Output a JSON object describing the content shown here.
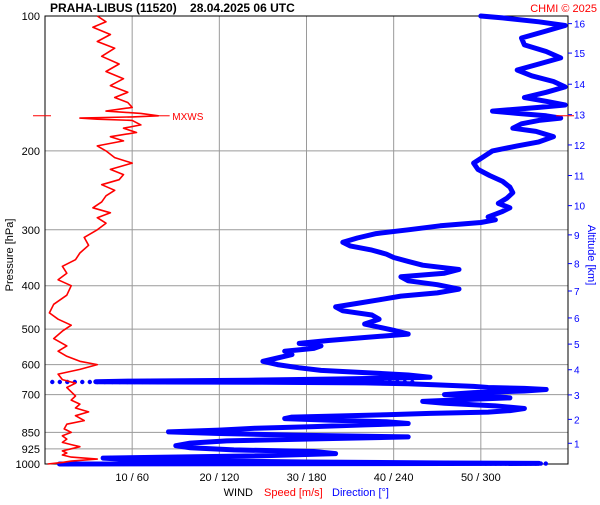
{
  "header": {
    "title": "PRAHA-LIBUS (11520)    28.04.2025 06 UTC",
    "credit": "CHMI © 2025"
  },
  "chart_data": {
    "type": "line",
    "left_axis": {
      "label": "Pressure [hPa]",
      "scale": "log",
      "range": [
        1000,
        100
      ],
      "ticks": [
        100,
        200,
        300,
        400,
        500,
        600,
        700,
        850,
        925,
        1000
      ],
      "tick_labels": [
        "100",
        "200",
        "300",
        "400",
        "500",
        "600",
        "700",
        "850",
        "925",
        "1000"
      ]
    },
    "right_axis": {
      "label": "Altitude [km]",
      "ticks": [
        1,
        2,
        3,
        4,
        5,
        6,
        7,
        8,
        9,
        10,
        11,
        12,
        13,
        14,
        15,
        16
      ],
      "tick_labels": [
        "1",
        "2",
        "3",
        "4",
        "5",
        "6",
        "7",
        "8",
        "9",
        "10",
        "11",
        "12",
        "13",
        "14",
        "15",
        "16"
      ]
    },
    "bottom_axis": {
      "label_wind": "WIND",
      "label_speed": "Speed [m/s]",
      "label_direction": "Direction [°]",
      "speed_range": [
        0,
        60
      ],
      "direction_range": [
        0,
        360
      ],
      "ticks": [
        "10 / 60",
        "20 / 120",
        "30 / 180",
        "40 / 240",
        "50 / 300"
      ]
    },
    "grid": true,
    "annotations": [
      {
        "text": "MXWS",
        "pressure": 167,
        "color": "#ff0000"
      }
    ],
    "series": [
      {
        "name": "Speed [m/s]",
        "color": "#ff0000",
        "x_unit": "m/s",
        "points": [
          [
            0.3,
            1000
          ],
          [
            2,
            992
          ],
          [
            3,
            985
          ],
          [
            6,
            975
          ],
          [
            3,
            965
          ],
          [
            2,
            955
          ],
          [
            2.5,
            945
          ],
          [
            2,
            935
          ],
          [
            3,
            925
          ],
          [
            4,
            915
          ],
          [
            3,
            905
          ],
          [
            2,
            895
          ],
          [
            2.5,
            880
          ],
          [
            2,
            865
          ],
          [
            3,
            850
          ],
          [
            2.2,
            835
          ],
          [
            2.5,
            815
          ],
          [
            4.5,
            800
          ],
          [
            3.5,
            780
          ],
          [
            5,
            765
          ],
          [
            3.5,
            750
          ],
          [
            4,
            735
          ],
          [
            3,
            720
          ],
          [
            3.5,
            705
          ],
          [
            3,
            690
          ],
          [
            2.5,
            675
          ],
          [
            3.5,
            660
          ],
          [
            2,
            648
          ],
          [
            1.5,
            630
          ],
          [
            4,
            615
          ],
          [
            6,
            600
          ],
          [
            4,
            590
          ],
          [
            2.5,
            575
          ],
          [
            1.5,
            560
          ],
          [
            2.5,
            545
          ],
          [
            1,
            525
          ],
          [
            2,
            505
          ],
          [
            3,
            490
          ],
          [
            1.5,
            475
          ],
          [
            0.5,
            460
          ],
          [
            1,
            440
          ],
          [
            2.5,
            420
          ],
          [
            3,
            400
          ],
          [
            1.5,
            388
          ],
          [
            2.5,
            375
          ],
          [
            2,
            362
          ],
          [
            3.5,
            350
          ],
          [
            4,
            338
          ],
          [
            5,
            325
          ],
          [
            4.5,
            312
          ],
          [
            6,
            300
          ],
          [
            7,
            290
          ],
          [
            6,
            282
          ],
          [
            7.5,
            275
          ],
          [
            5.5,
            268
          ],
          [
            6.5,
            260
          ],
          [
            7,
            252
          ],
          [
            8,
            245
          ],
          [
            6.5,
            238
          ],
          [
            8.5,
            232
          ],
          [
            9,
            226
          ],
          [
            7.5,
            220
          ],
          [
            10,
            213
          ],
          [
            8,
            207
          ],
          [
            7,
            200
          ],
          [
            6,
            195
          ],
          [
            9,
            190
          ],
          [
            7.5,
            186
          ],
          [
            10.5,
            182
          ],
          [
            9,
            178
          ],
          [
            11,
            175
          ],
          [
            10,
            171
          ],
          [
            6,
            170
          ],
          [
            4,
            169
          ],
          [
            10,
            168
          ],
          [
            13,
            167
          ],
          [
            11,
            165
          ],
          [
            7,
            163
          ],
          [
            10,
            160
          ],
          [
            9.5,
            156
          ],
          [
            8,
            152
          ],
          [
            9.5,
            148
          ],
          [
            7.5,
            143
          ],
          [
            9,
            138
          ],
          [
            7,
            133
          ],
          [
            8.5,
            128
          ],
          [
            6.5,
            123
          ],
          [
            8,
            118
          ],
          [
            6,
            114
          ],
          [
            7.5,
            110
          ],
          [
            5.5,
            106
          ],
          [
            7,
            103
          ],
          [
            6,
            100
          ]
        ]
      },
      {
        "name": "Direction [°]",
        "color": "#0000ff",
        "x_unit": "deg",
        "points": [
          [
            10,
            1000
          ],
          [
            340,
            997
          ],
          [
            275,
            995
          ],
          [
            180,
            990
          ],
          [
            130,
            985
          ],
          [
            60,
            978
          ],
          [
            40,
            970
          ],
          [
            150,
            958
          ],
          [
            200,
            948
          ],
          [
            185,
            938
          ],
          [
            130,
            930
          ],
          [
            100,
            920
          ],
          [
            90,
            910
          ],
          [
            100,
            898
          ],
          [
            125,
            888
          ],
          [
            190,
            878
          ],
          [
            250,
            870
          ],
          [
            170,
            862
          ],
          [
            120,
            855
          ],
          [
            85,
            848
          ],
          [
            120,
            840
          ],
          [
            145,
            832
          ],
          [
            185,
            825
          ],
          [
            220,
            818
          ],
          [
            250,
            812
          ],
          [
            235,
            805
          ],
          [
            195,
            798
          ],
          [
            165,
            792
          ],
          [
            170,
            786
          ],
          [
            205,
            781
          ],
          [
            235,
            776
          ],
          [
            265,
            771
          ],
          [
            305,
            766
          ],
          [
            320,
            760
          ],
          [
            330,
            752
          ],
          [
            310,
            742
          ],
          [
            275,
            732
          ],
          [
            260,
            725
          ],
          [
            290,
            718
          ],
          [
            320,
            712
          ],
          [
            305,
            705
          ],
          [
            275,
            700
          ],
          [
            295,
            693
          ],
          [
            330,
            687
          ],
          [
            345,
            682
          ],
          [
            330,
            678
          ],
          [
            305,
            675
          ],
          [
            295,
            671
          ],
          [
            270,
            666
          ],
          [
            250,
            662
          ],
          [
            220,
            659
          ],
          [
            150,
            657
          ],
          [
            80,
            656
          ],
          [
            35,
            655
          ],
          [
            60,
            653
          ],
          [
            140,
            650
          ],
          [
            200,
            646
          ],
          [
            240,
            643
          ],
          [
            265,
            640
          ],
          [
            250,
            633
          ],
          [
            220,
            625
          ],
          [
            190,
            618
          ],
          [
            175,
            610
          ],
          [
            160,
            600
          ],
          [
            150,
            590
          ],
          [
            160,
            580
          ],
          [
            170,
            570
          ],
          [
            165,
            560
          ],
          [
            185,
            552
          ],
          [
            190,
            545
          ],
          [
            175,
            538
          ],
          [
            195,
            530
          ],
          [
            220,
            522
          ],
          [
            250,
            513
          ],
          [
            240,
            503
          ],
          [
            230,
            495
          ],
          [
            220,
            487
          ],
          [
            230,
            475
          ],
          [
            225,
            465
          ],
          [
            205,
            455
          ],
          [
            200,
            446
          ],
          [
            215,
            438
          ],
          [
            230,
            430
          ],
          [
            245,
            422
          ],
          [
            270,
            415
          ],
          [
            285,
            407
          ],
          [
            270,
            398
          ],
          [
            250,
            390
          ],
          [
            245,
            382
          ],
          [
            275,
            375
          ],
          [
            285,
            368
          ],
          [
            260,
            360
          ],
          [
            250,
            353
          ],
          [
            240,
            346
          ],
          [
            235,
            340
          ],
          [
            225,
            333
          ],
          [
            210,
            326
          ],
          [
            205,
            320
          ],
          [
            215,
            313
          ],
          [
            228,
            306
          ],
          [
            250,
            300
          ],
          [
            272,
            294
          ],
          [
            300,
            289
          ],
          [
            310,
            285
          ],
          [
            305,
            281
          ],
          [
            310,
            277
          ],
          [
            315,
            273
          ],
          [
            320,
            268
          ],
          [
            312,
            262
          ],
          [
            318,
            255
          ],
          [
            322,
            248
          ],
          [
            320,
            241
          ],
          [
            315,
            234
          ],
          [
            306,
            227
          ],
          [
            298,
            220
          ],
          [
            295,
            213
          ],
          [
            302,
            206
          ],
          [
            308,
            200
          ],
          [
            325,
            195
          ],
          [
            340,
            191
          ],
          [
            350,
            186
          ],
          [
            338,
            181
          ],
          [
            322,
            178
          ],
          [
            328,
            174
          ],
          [
            340,
            171
          ],
          [
            355,
            169
          ],
          [
            345,
            167
          ],
          [
            325,
            165
          ],
          [
            308,
            163
          ],
          [
            340,
            160
          ],
          [
            358,
            158
          ],
          [
            345,
            155
          ],
          [
            330,
            152
          ],
          [
            345,
            148
          ],
          [
            358,
            144
          ],
          [
            350,
            140
          ],
          [
            335,
            136
          ],
          [
            325,
            132
          ],
          [
            340,
            128
          ],
          [
            355,
            124
          ],
          [
            345,
            120
          ],
          [
            330,
            116
          ],
          [
            328,
            112
          ],
          [
            345,
            108
          ],
          [
            358,
            105
          ],
          [
            340,
            103
          ],
          [
            315,
            101
          ],
          [
            300,
            100
          ]
        ]
      }
    ]
  }
}
